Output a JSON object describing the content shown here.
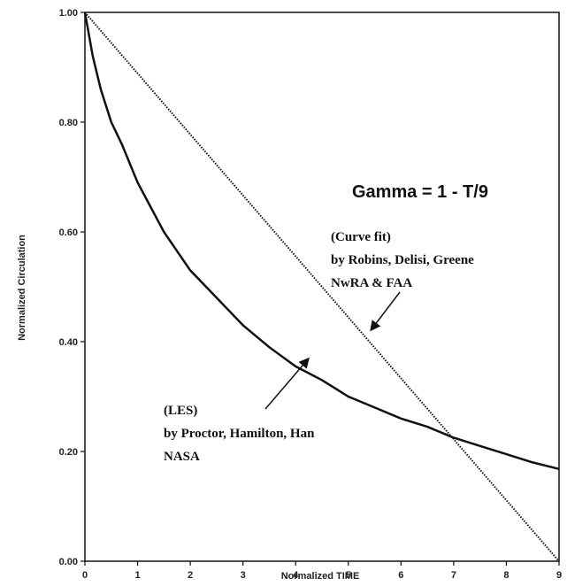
{
  "chart_data": {
    "type": "line",
    "xlabel": "Normalized TIME",
    "ylabel": "Normalized Circulation",
    "xlim": [
      0,
      9
    ],
    "ylim": [
      0,
      1
    ],
    "x_ticks": [
      "0",
      "1",
      "2",
      "3",
      "4",
      "5",
      "6",
      "7",
      "8",
      "9"
    ],
    "y_ticks": [
      "0.00",
      "0.20",
      "0.40",
      "0.60",
      "0.80",
      "1.00"
    ],
    "grid": false,
    "series": [
      {
        "style": "dotted",
        "x": [
          0,
          9
        ],
        "y": [
          1.0,
          0.0
        ]
      },
      {
        "style": "solid",
        "x": [
          0,
          0.15,
          0.3,
          0.5,
          0.7,
          1.0,
          1.5,
          2.0,
          2.5,
          3.0,
          3.5,
          4.0,
          4.5,
          5.0,
          5.5,
          6.0,
          6.5,
          7.0,
          7.5,
          8.0,
          8.5,
          9.0
        ],
        "y": [
          1.0,
          0.92,
          0.86,
          0.8,
          0.76,
          0.69,
          0.6,
          0.53,
          0.48,
          0.43,
          0.39,
          0.355,
          0.33,
          0.3,
          0.28,
          0.26,
          0.245,
          0.225,
          0.21,
          0.195,
          0.18,
          0.168
        ]
      }
    ],
    "annotations": {
      "equation": "Gamma = 1 - T/9",
      "curvefit_lines": [
        "(Curve fit)",
        "by Robins, Delisi, Greene",
        "NwRA & FAA"
      ],
      "les_lines": [
        "(LES)",
        "by Proctor, Hamilton, Han",
        "NASA"
      ]
    }
  }
}
